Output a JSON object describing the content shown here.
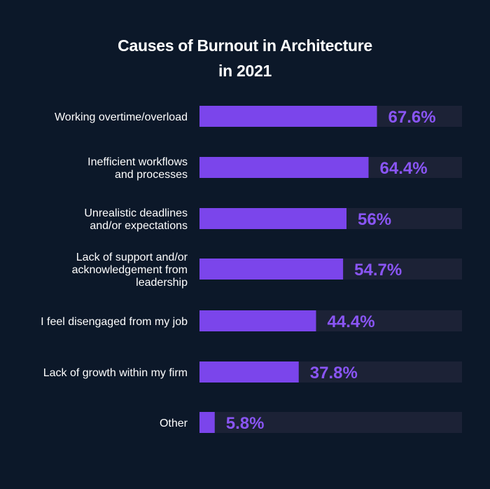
{
  "chart_data": {
    "type": "bar",
    "orientation": "horizontal",
    "title_lines": [
      "Causes of Burnout in Architecture",
      "in 2021"
    ],
    "categories": [
      [
        "Working overtime/overload"
      ],
      [
        "Inefficient workflows",
        "and processes"
      ],
      [
        "Unrealistic deadlines",
        "and/or expectations"
      ],
      [
        "Lack of support and/or",
        "acknowledgement from",
        "leadership"
      ],
      [
        "I feel disengaged from my job"
      ],
      [
        "Lack of growth within my firm"
      ],
      [
        "Other"
      ]
    ],
    "values": [
      67.6,
      64.4,
      56,
      54.7,
      44.4,
      37.8,
      5.8
    ],
    "value_labels": [
      "67.6%",
      "64.4%",
      "56%",
      "54.7%",
      "44.4%",
      "37.8%",
      "5.8%"
    ],
    "xlim": [
      0,
      100
    ],
    "grid": false,
    "legend": "none"
  },
  "colors": {
    "background": "#0c1829",
    "bar_fill": "#7b45eb",
    "bar_track": "#1c2236",
    "value_label": "#8a55f5",
    "category_label": "#ffffff",
    "title": "#ffffff"
  }
}
